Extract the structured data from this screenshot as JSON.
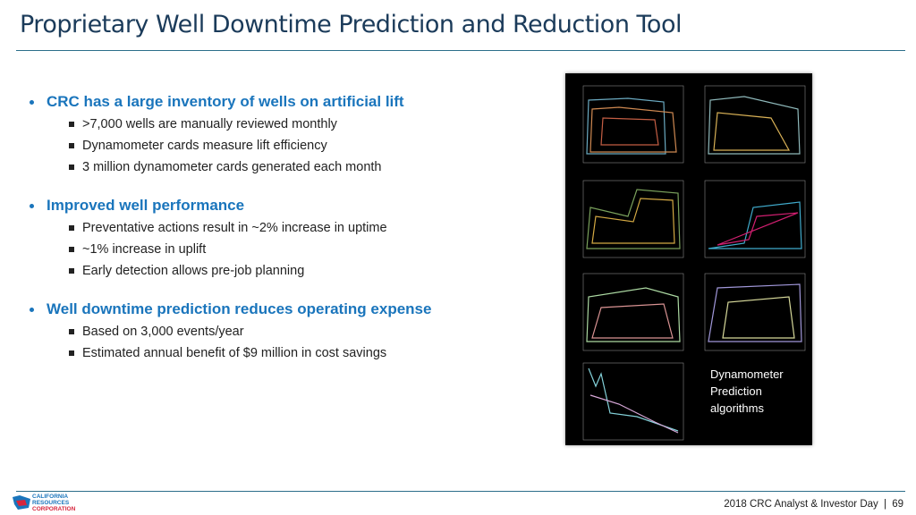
{
  "header": {
    "title": "Proprietary Well Downtime Prediction and Reduction Tool"
  },
  "bullets": [
    {
      "text": "CRC has a large inventory of wells on artificial lift",
      "items": [
        ">7,000 wells are manually reviewed monthly",
        "Dynamometer cards measure lift efficiency",
        "3 million dynamometer cards generated each month"
      ]
    },
    {
      "text": "Improved well performance",
      "items": [
        "Preventative actions result in ~2% increase in uptime",
        "~1% increase in uplift",
        "Early detection allows pre-job planning"
      ]
    },
    {
      "text": "Well downtime prediction reduces operating expense",
      "items": [
        "Based on 3,000 events/year",
        "Estimated annual benefit of $9 million in cost savings"
      ]
    }
  ],
  "figure": {
    "caption": "Dynamometer Prediction algorithms"
  },
  "footer": {
    "logo_line1": "CALIFORNIA",
    "logo_line2": "RESOURCES",
    "logo_line3": "CORPORATION",
    "event": "2018 CRC Analyst & Investor Day",
    "separator": "|",
    "page": "69"
  }
}
